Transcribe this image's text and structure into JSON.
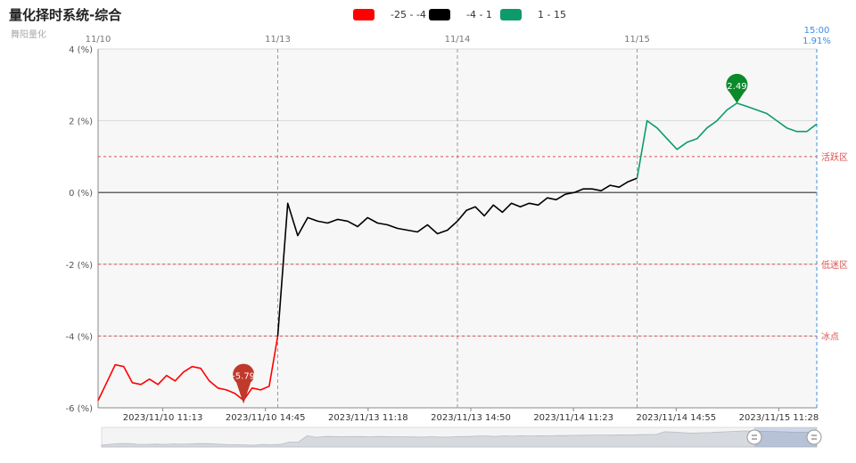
{
  "title": "量化择时系统-综合",
  "subtitle": "舞阳量化",
  "legend": [
    {
      "label": "-25 - -4",
      "color": "#ff0000"
    },
    {
      "label": "-4 - 1",
      "color": "#000000"
    },
    {
      "label": "1 - 15",
      "color": "#0d9b6b"
    }
  ],
  "chart_data": {
    "type": "line",
    "ylim": [
      -6,
      4
    ],
    "y_ticks": [
      "4 (%)",
      "2 (%)",
      "0 (%)",
      "-2 (%)",
      "-4 (%)",
      "-6 (%)"
    ],
    "x_ticks": [
      "2023/11/10 11:13",
      "2023/11/10 14:45",
      "2023/11/13 11:18",
      "2023/11/13 14:50",
      "2023/11/14 11:23",
      "2023/11/14 14:55",
      "2023/11/15 11:28"
    ],
    "day_markers": [
      "11/10",
      "11/13",
      "11/14",
      "11/15"
    ],
    "reference_lines": [
      {
        "value": 1,
        "label": "活跃区"
      },
      {
        "value": -2,
        "label": "低迷区"
      },
      {
        "value": -4,
        "label": "冰点"
      }
    ],
    "last_point": {
      "time": "15:00",
      "value": "1.91%"
    },
    "markers": [
      {
        "label": "-5.79",
        "value": -5.79,
        "type": "min",
        "color": "#c0392b"
      },
      {
        "label": "2.49",
        "value": 2.49,
        "type": "max",
        "color": "#0a8a2a"
      }
    ],
    "series": [
      {
        "segment": "11/10",
        "color": "#ff0000",
        "values": [
          -5.8,
          -5.3,
          -4.8,
          -4.85,
          -5.3,
          -5.35,
          -5.2,
          -5.35,
          -5.1,
          -5.25,
          -5.0,
          -4.85,
          -4.9,
          -5.25,
          -5.45,
          -5.5,
          -5.6,
          -5.79,
          -5.45,
          -5.5,
          -5.4,
          -4.0
        ]
      },
      {
        "segment": "11/13",
        "color": "#000000",
        "values": [
          -4.0,
          -0.3,
          -1.2,
          -0.7,
          -0.8,
          -0.85,
          -0.75,
          -0.8,
          -0.95,
          -0.7,
          -0.85,
          -0.9,
          -1.0,
          -1.05,
          -1.1,
          -0.9,
          -1.15,
          -1.05,
          -0.8
        ]
      },
      {
        "segment": "11/14",
        "color": "#000000",
        "values": [
          -0.8,
          -0.5,
          -0.4,
          -0.65,
          -0.35,
          -0.55,
          -0.3,
          -0.4,
          -0.3,
          -0.35,
          -0.15,
          -0.2,
          -0.05,
          0.0,
          0.1,
          0.1,
          0.05,
          0.2,
          0.15,
          0.3,
          0.4
        ]
      },
      {
        "segment": "11/15",
        "color": "#0d9b6b",
        "values": [
          0.4,
          2.0,
          1.8,
          1.5,
          1.2,
          1.4,
          1.5,
          1.8,
          2.0,
          2.3,
          2.49,
          2.4,
          2.3,
          2.2,
          2.0,
          1.8,
          1.7,
          1.7,
          1.91
        ]
      }
    ]
  }
}
